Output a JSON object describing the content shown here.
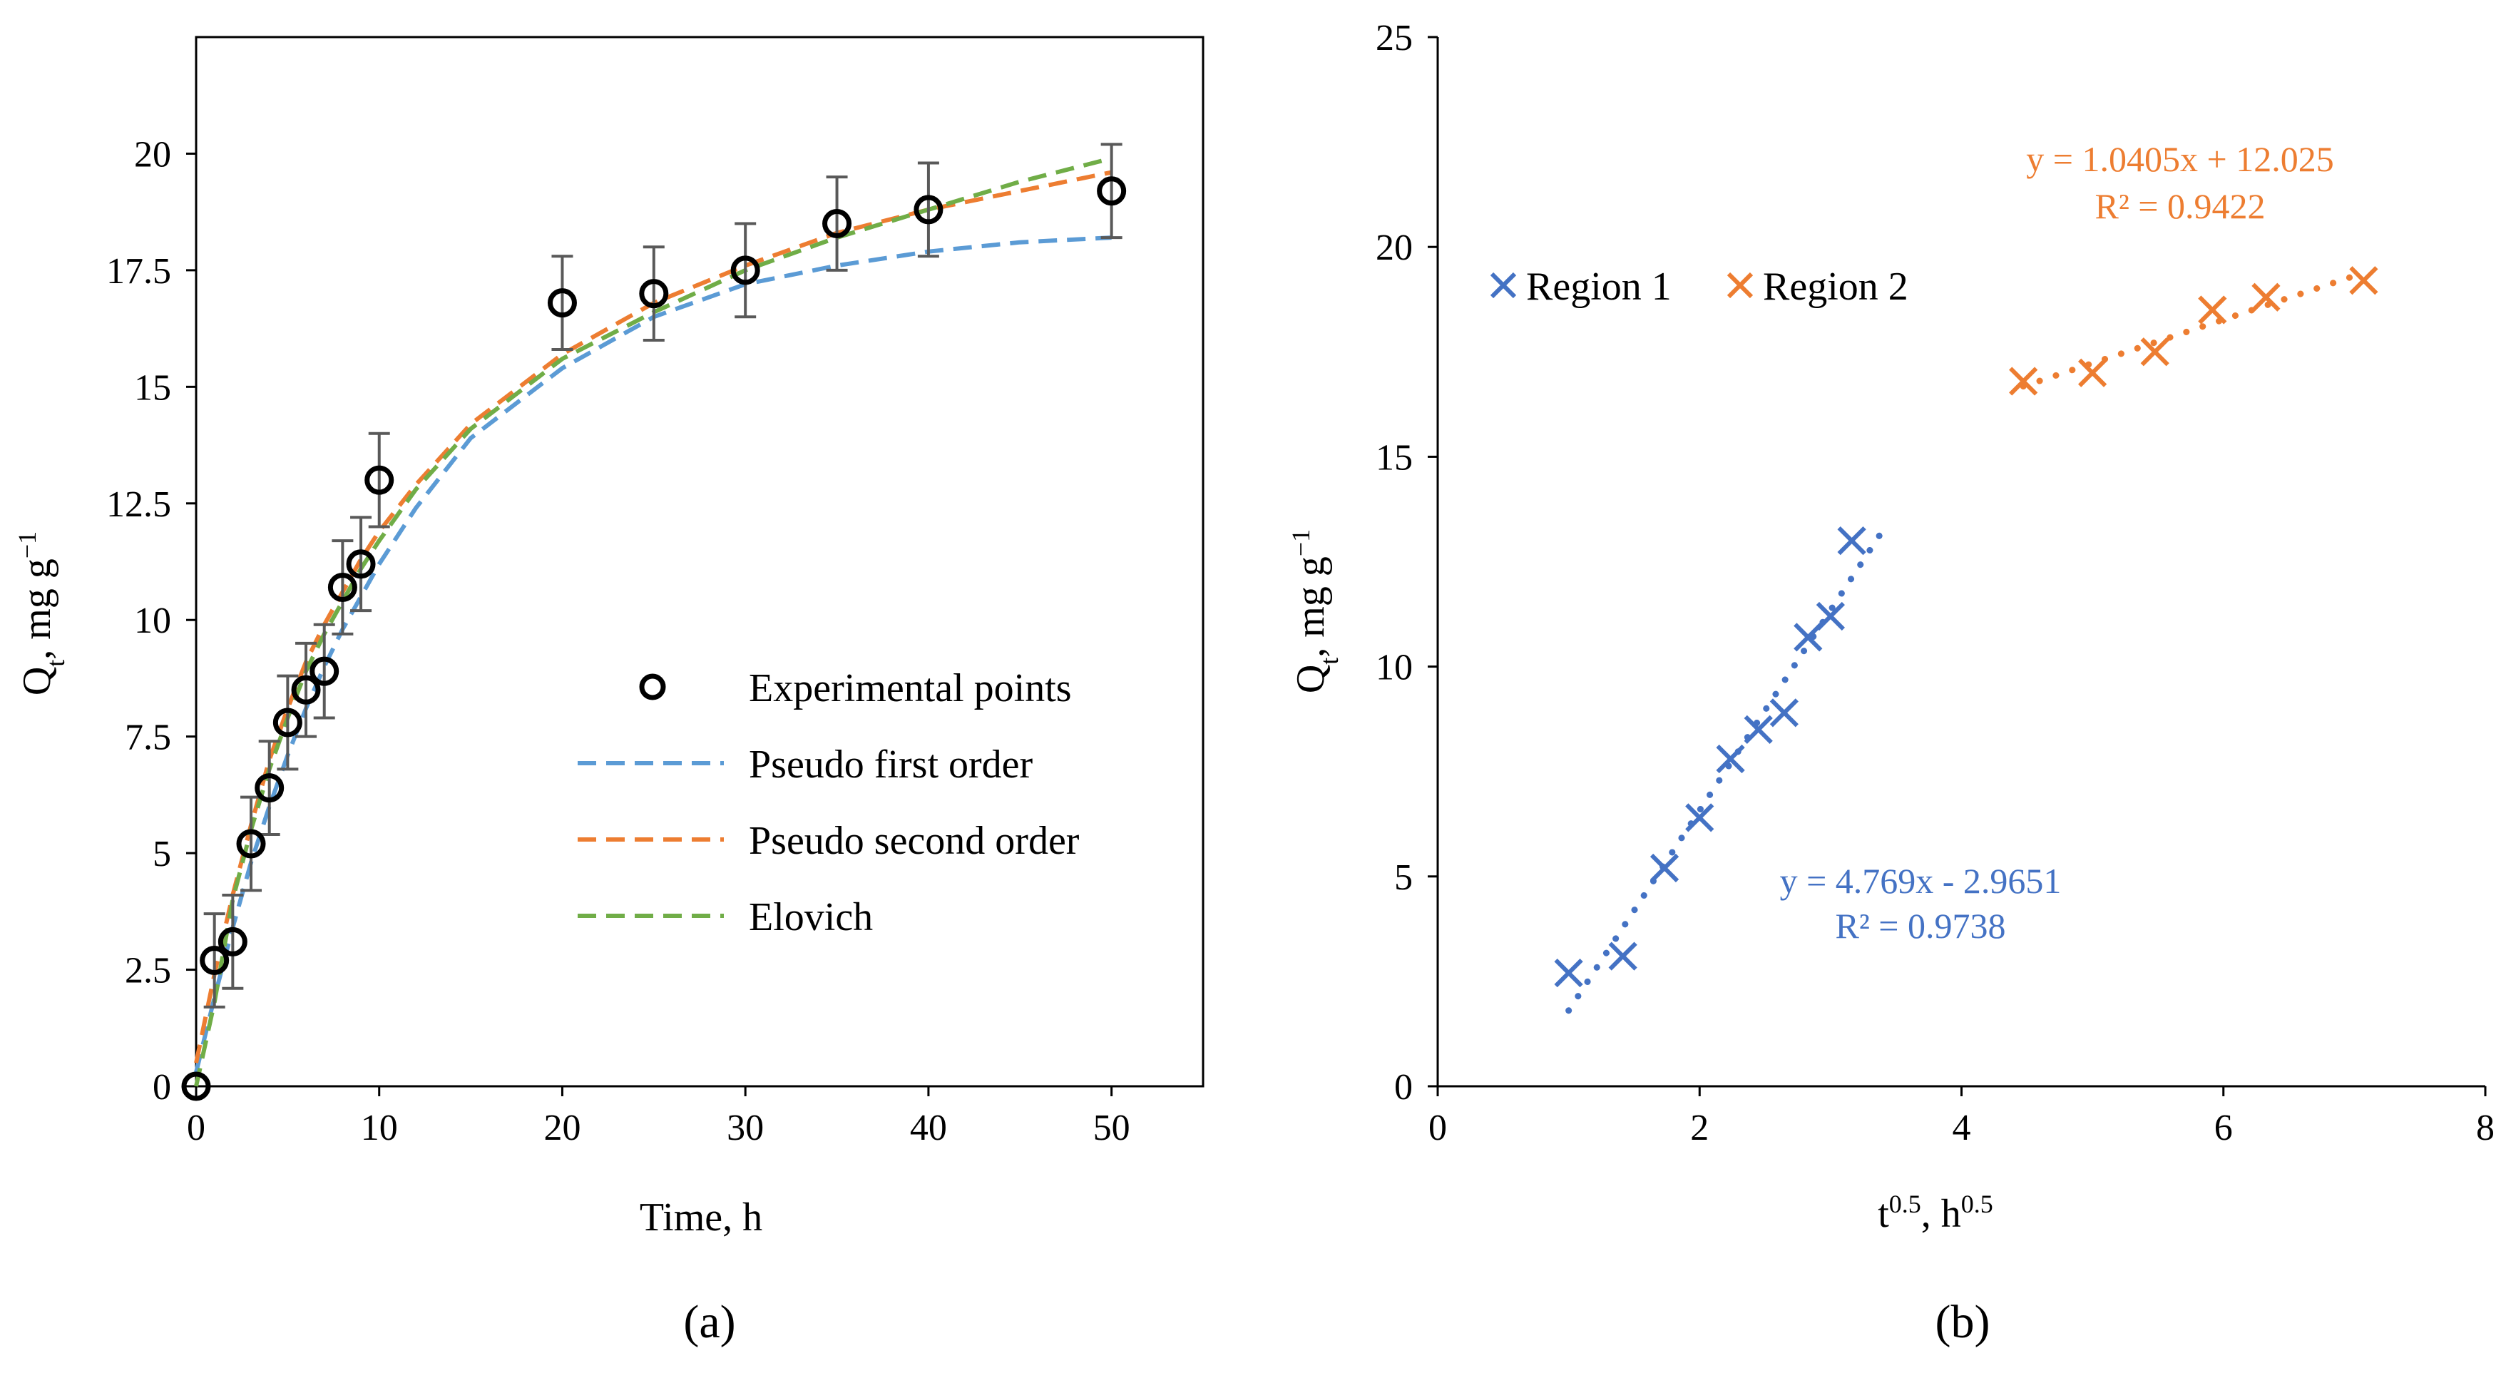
{
  "colors": {
    "blue": "#4472C4",
    "orange": "#ED7D31",
    "green": "#70AD47",
    "pfo": "#5B9BD5",
    "errbar": "#595959",
    "axis": "#000000"
  },
  "chart_data": [
    {
      "type": "scatter",
      "panel_label": "(a)",
      "xlabel": "Time, h",
      "ylabel": "Q_t, mg g^-1",
      "xlim": [
        0,
        55
      ],
      "ylim": [
        0,
        22.5
      ],
      "xticks": [
        0,
        10,
        20,
        30,
        40,
        50
      ],
      "yticks": [
        0,
        2.5,
        5,
        7.5,
        10,
        12.5,
        15,
        17.5,
        20
      ],
      "grid": false,
      "legend_position": "center-right",
      "legend": [
        "Experimental points",
        "Pseudo first order",
        "Pseudo second order",
        "Elovich"
      ],
      "experimental": {
        "name": "Experimental points",
        "x": [
          0,
          1,
          2,
          3,
          4,
          5,
          6,
          7,
          8,
          9,
          10,
          20,
          25,
          30,
          35,
          40,
          50
        ],
        "y": [
          0,
          2.7,
          3.1,
          5.2,
          6.4,
          7.8,
          8.5,
          8.9,
          10.7,
          11.2,
          13.0,
          16.8,
          17.0,
          17.5,
          18.5,
          18.8,
          19.2
        ],
        "error": [
          0,
          1.0,
          1.0,
          1.0,
          1.0,
          1.0,
          1.0,
          1.0,
          1.0,
          1.0,
          1.0,
          1.0,
          1.0,
          1.0,
          1.0,
          1.0,
          1.0
        ]
      },
      "fits": [
        {
          "name": "Pseudo first order",
          "x": [
            0,
            1,
            2,
            3,
            4,
            5,
            6,
            7,
            8,
            9,
            10,
            12,
            15,
            20,
            25,
            30,
            35,
            40,
            45,
            50
          ],
          "y": [
            0.3,
            1.9,
            3.4,
            4.8,
            6.0,
            7.1,
            8.1,
            9.0,
            9.8,
            10.5,
            11.2,
            12.4,
            13.9,
            15.4,
            16.5,
            17.2,
            17.6,
            17.9,
            18.1,
            18.2
          ]
        },
        {
          "name": "Pseudo second order",
          "x": [
            0,
            1,
            2,
            3,
            4,
            5,
            6,
            7,
            8,
            9,
            10,
            12,
            15,
            20,
            25,
            30,
            35,
            40,
            45,
            50
          ],
          "y": [
            0.5,
            2.4,
            4.1,
            5.6,
            7.0,
            8.1,
            9.1,
            9.9,
            10.6,
            11.3,
            11.9,
            12.9,
            14.2,
            15.7,
            16.8,
            17.6,
            18.3,
            18.8,
            19.2,
            19.6
          ]
        },
        {
          "name": "Elovich",
          "x": [
            0,
            1,
            2,
            3,
            4,
            5,
            6,
            7,
            8,
            9,
            10,
            12,
            15,
            20,
            25,
            30,
            35,
            40,
            45,
            50
          ],
          "y": [
            0,
            1.8,
            4.0,
            5.5,
            6.8,
            7.9,
            8.9,
            9.7,
            10.4,
            11.1,
            11.7,
            12.8,
            14.1,
            15.6,
            16.6,
            17.5,
            18.2,
            18.8,
            19.4,
            19.9
          ]
        }
      ]
    },
    {
      "type": "scatter",
      "panel_label": "(b)",
      "xlabel": "t^0.5, h^0.5",
      "ylabel": "Q_t, mg g^-1",
      "xlim": [
        0,
        8
      ],
      "ylim": [
        0,
        25
      ],
      "xticks": [
        0,
        2,
        4,
        6,
        8
      ],
      "yticks": [
        0,
        5,
        10,
        15,
        20,
        25
      ],
      "grid": false,
      "legend_position": "top-left",
      "legend": [
        "Region 1",
        "Region 2"
      ],
      "series": [
        {
          "name": "Region 1",
          "x": [
            1.0,
            1.414,
            1.732,
            2.0,
            2.236,
            2.449,
            2.646,
            2.828,
            3.0,
            3.162
          ],
          "y": [
            2.7,
            3.1,
            5.2,
            6.4,
            7.8,
            8.5,
            8.9,
            10.7,
            11.2,
            13.0
          ],
          "trendline": {
            "slope": 4.769,
            "intercept": -2.9651,
            "x_range": [
              1.0,
              3.4
            ],
            "equation": "y = 4.769x - 2.9651",
            "r2": "R² = 0.9738"
          }
        },
        {
          "name": "Region 2",
          "x": [
            4.472,
            5.0,
            5.477,
            5.916,
            6.325,
            7.071
          ],
          "y": [
            16.8,
            17.0,
            17.5,
            18.5,
            18.8,
            19.2
          ],
          "trendline": {
            "slope": 1.0405,
            "intercept": 12.025,
            "x_range": [
              4.472,
              7.071
            ],
            "equation": "y = 1.0405x + 12.025",
            "r2": "R² = 0.9422"
          }
        }
      ]
    }
  ]
}
